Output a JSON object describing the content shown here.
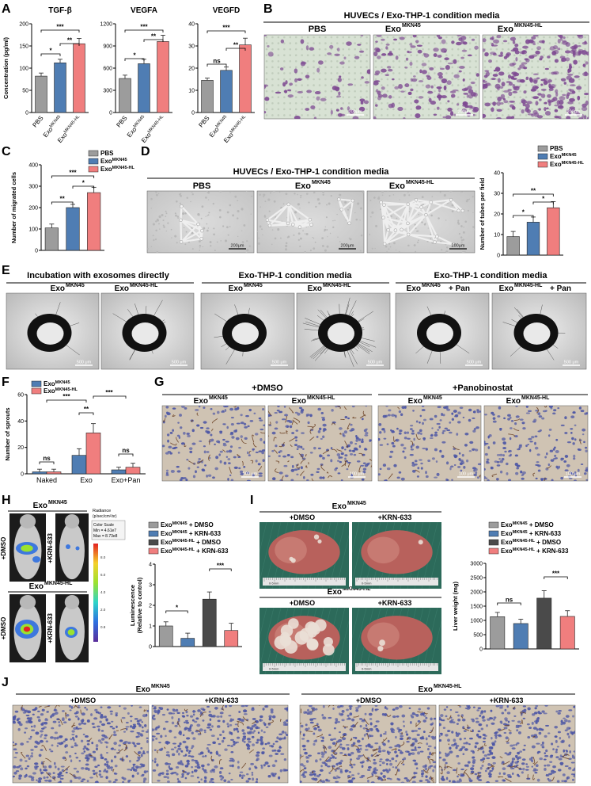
{
  "colors": {
    "pbs": "#9c9c9c",
    "mkn45": "#4f7db3",
    "mkn45hl": "#f07e7e",
    "dark": "#4a4a4a",
    "transwell_bg": "#d8e2d4",
    "transwell_cell": "#7e4a92",
    "tube_bg": "#d7d7d7",
    "ihc_bg": "#cfc3b3",
    "ihc_nuclei": "#4b55a5",
    "ihc_vessel": "#6a3f22",
    "liver": "#b8615c"
  },
  "labels": {
    "A": "A",
    "B": "B",
    "C": "C",
    "D": "D",
    "E": "E",
    "F": "F",
    "G": "G",
    "H": "H",
    "I": "I",
    "J": "J"
  },
  "text": {
    "huvec_title": "HUVECs / Exo-THP-1 condition media",
    "pbs": "PBS",
    "exo": "Exo",
    "mkn45": "MKN45",
    "mkn45hl": "MKN45-HL",
    "scale_200": "200μm",
    "scale_500": "500 μm",
    "scale_100": "100 μm",
    "e_group1": "Incubation with exosomes directly",
    "e_group2": "Exo-THP-1 condition media",
    "e_group3": "Exo-THP-1 condition media",
    "pan_suffix": " + Pan",
    "dmso": "+DMSO",
    "panobinostat": "+Panobinostat",
    "krn": "+KRN-633",
    "dmso_suffix": " + DMSO",
    "krn_suffix": " + KRN-633",
    "radiance_l1": "Radiance",
    "radiance_l2": "(p/sec/cm²/sr)",
    "color_scale": "Color Scale",
    "scale_min": "Min = 4.61e7",
    "scale_max": "Max = 8.73e8",
    "ruler": "0-5mm"
  },
  "chart_data": [
    {
      "panel": "A",
      "type": "bar",
      "title": "TGF-β",
      "ylabel": "Concentration (pg/ml)",
      "ylim": [
        0,
        200
      ],
      "yticks": [
        "0",
        "50",
        "100",
        "150",
        "200"
      ],
      "categories": [
        "PBS",
        "Exo MKN45",
        "Exo MKN45-HL"
      ],
      "values": [
        82,
        112,
        155
      ],
      "errors": [
        7,
        8,
        12
      ],
      "significance": [
        {
          "from": 0,
          "to": 1,
          "label": "*"
        },
        {
          "from": 1,
          "to": 2,
          "label": "**"
        },
        {
          "from": 0,
          "to": 2,
          "label": "***"
        }
      ]
    },
    {
      "panel": "A",
      "type": "bar",
      "title": "VEGFA",
      "ylim": [
        0,
        1200
      ],
      "yticks": [
        "0",
        "300",
        "600",
        "900",
        "1200"
      ],
      "categories": [
        "PBS",
        "Exo MKN45",
        "Exo MKN45-HL"
      ],
      "values": [
        460,
        660,
        960
      ],
      "errors": [
        45,
        60,
        85
      ],
      "significance": [
        {
          "from": 0,
          "to": 1,
          "label": "*"
        },
        {
          "from": 1,
          "to": 2,
          "label": "**"
        },
        {
          "from": 0,
          "to": 2,
          "label": "***"
        }
      ]
    },
    {
      "panel": "A",
      "type": "bar",
      "title": "VEGFD",
      "ylim": [
        0,
        40
      ],
      "yticks": [
        "0",
        "10",
        "20",
        "30",
        "40"
      ],
      "categories": [
        "PBS",
        "Exo MKN45",
        "Exo MKN45-HL"
      ],
      "values": [
        14.5,
        19,
        30.5
      ],
      "errors": [
        1,
        1.5,
        3
      ],
      "significance": [
        {
          "from": 0,
          "to": 1,
          "label": "ns"
        },
        {
          "from": 1,
          "to": 2,
          "label": "**"
        },
        {
          "from": 0,
          "to": 2,
          "label": "***"
        }
      ]
    },
    {
      "panel": "C",
      "type": "bar",
      "ylabel": "Number of migrated cells",
      "ylim": [
        0,
        400
      ],
      "yticks": [
        "0",
        "100",
        "200",
        "300",
        "400"
      ],
      "categories": [
        "PBS",
        "Exo MKN45",
        "Exo MKN45-HL"
      ],
      "values": [
        105,
        200,
        270
      ],
      "errors": [
        18,
        15,
        25
      ],
      "legend": [
        "PBS",
        "Exo MKN45",
        "Exo MKN45-HL"
      ],
      "significance": [
        {
          "from": 0,
          "to": 1,
          "label": "**"
        },
        {
          "from": 1,
          "to": 2,
          "label": "*"
        },
        {
          "from": 0,
          "to": 2,
          "label": "***"
        }
      ]
    },
    {
      "panel": "D",
      "type": "bar",
      "ylabel": "Number of tubes per field",
      "ylim": [
        0,
        40
      ],
      "yticks": [
        "0",
        "10",
        "20",
        "30",
        "40"
      ],
      "categories": [
        "PBS",
        "Exo MKN45",
        "Exo MKN45-HL"
      ],
      "values": [
        9,
        16,
        23
      ],
      "errors": [
        2.5,
        2.5,
        3
      ],
      "legend": [
        "PBS",
        "Exo MKN45",
        "Exo MKN45-HL"
      ],
      "significance": [
        {
          "from": 0,
          "to": 1,
          "label": "*"
        },
        {
          "from": 1,
          "to": 2,
          "label": "*"
        },
        {
          "from": 0,
          "to": 2,
          "label": "**"
        }
      ]
    },
    {
      "panel": "F",
      "type": "bar",
      "ylabel": "Number of sprouts",
      "ylim": [
        0,
        60
      ],
      "yticks": [
        "0",
        "20",
        "40",
        "60"
      ],
      "categories": [
        "Naked",
        "Exo",
        "Exo+Pan"
      ],
      "series": [
        {
          "name": "Exo MKN45",
          "values": [
            1.5,
            14,
            3
          ],
          "errors": [
            2,
            5,
            2
          ]
        },
        {
          "name": "Exo MKN45-HL",
          "values": [
            1.5,
            31,
            5
          ],
          "errors": [
            2,
            7,
            3
          ]
        }
      ],
      "significance": [
        {
          "label": "ns",
          "where": "Naked"
        },
        {
          "label": "**",
          "where": "Exo"
        },
        {
          "label": "ns",
          "where": "Exo+Pan"
        },
        {
          "label": "***",
          "where": "Naked vs Exo"
        },
        {
          "label": "***",
          "where": "Exo vs Exo+Pan"
        }
      ]
    },
    {
      "panel": "H",
      "type": "bar",
      "ylabel": "Luminescence (Relative to control)",
      "ylim": [
        0,
        4
      ],
      "yticks": [
        "0",
        "1",
        "2",
        "3",
        "4"
      ],
      "categories": [
        "Exo MKN45 + DMSO",
        "Exo MKN45 + KRN-633",
        "Exo MKN45-HL + DMSO",
        "Exo MKN45-HL + KRN-633"
      ],
      "values": [
        1.0,
        0.4,
        2.3,
        0.78
      ],
      "errors": [
        0.2,
        0.25,
        0.35,
        0.35
      ],
      "legend": [
        "Exo MKN45 + DMSO",
        "Exo MKN45 + KRN-633",
        "Exo MKN45-HL + DMSO",
        "Exo MKN45-HL + KRN-633"
      ],
      "significance": [
        {
          "from": 0,
          "to": 1,
          "label": "*"
        },
        {
          "from": 2,
          "to": 3,
          "label": "***"
        }
      ]
    },
    {
      "panel": "I",
      "type": "bar",
      "ylabel": "Liver weight (mg)",
      "ylim": [
        0,
        3000
      ],
      "yticks": [
        "0",
        "500",
        "1000",
        "1500",
        "2000",
        "2500",
        "3000"
      ],
      "categories": [
        "Exo MKN45 + DMSO",
        "Exo MKN45 + KRN-633",
        "Exo MKN45-HL + DMSO",
        "Exo MKN45-HL + KRN-633"
      ],
      "values": [
        1130,
        890,
        1780,
        1140
      ],
      "errors": [
        150,
        150,
        260,
        200
      ],
      "legend": [
        "Exo MKN45 + DMSO",
        "Exo MKN45 + KRN-633",
        "Exo MKN45-HL + DMSO",
        "Exo MKN45-HL + KRN-633"
      ],
      "significance": [
        {
          "from": 0,
          "to": 1,
          "label": "ns"
        },
        {
          "from": 2,
          "to": 3,
          "label": "***"
        }
      ]
    }
  ]
}
